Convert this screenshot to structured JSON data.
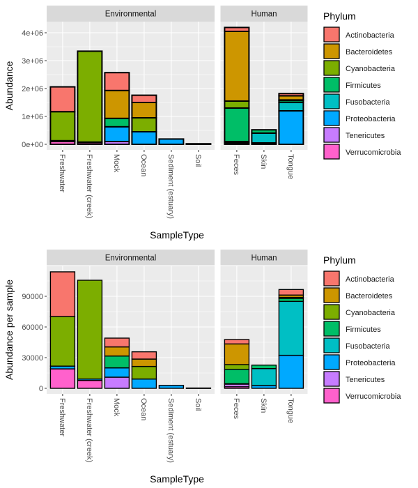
{
  "legend": {
    "title": "Phylum",
    "entries": [
      "Actinobacteria",
      "Bacteroidetes",
      "Cyanobacteria",
      "Firmicutes",
      "Fusobacteria",
      "Proteobacteria",
      "Tenericutes",
      "Verrucomicrobia"
    ],
    "colors": [
      "#F8766D",
      "#CD9600",
      "#7CAE00",
      "#00BE67",
      "#00BFC4",
      "#00A9FF",
      "#C77CFF",
      "#FF61CC"
    ]
  },
  "chart_data": [
    {
      "type": "bar",
      "stacked": true,
      "xlabel": "SampleType",
      "ylabel": "Abundance",
      "ylim": [
        -200000,
        4400000
      ],
      "yticks": [
        0,
        1000000,
        2000000,
        3000000,
        4000000
      ],
      "ytick_labels": [
        "0e+00",
        "1e+06",
        "2e+06",
        "3e+06",
        "4e+06"
      ],
      "grid": true,
      "legend_position": "right",
      "facets": [
        {
          "label": "Environmental",
          "categories": [
            "Freshwater",
            "Freshwater (creek)",
            "Mock",
            "Ocean",
            "Sediment (estuary)",
            "Soil"
          ]
        },
        {
          "label": "Human",
          "categories": [
            "Feces",
            "Skin",
            "Tongue"
          ]
        }
      ],
      "values": {
        "Freshwater": {
          "Verrucomicrobia": 100000,
          "Proteobacteria": 30000,
          "Cyanobacteria": 1040000,
          "Actinobacteria": 890000
        },
        "Freshwater (creek)": {
          "Verrucomicrobia": 60000,
          "Proteobacteria": 20000,
          "Cyanobacteria": 3260000
        },
        "Mock": {
          "Tenericutes": 100000,
          "Proteobacteria": 530000,
          "Firmicutes": 300000,
          "Bacteroidetes": 1000000,
          "Actinobacteria": 640000
        },
        "Ocean": {
          "Proteobacteria": 450000,
          "Cyanobacteria": 500000,
          "Bacteroidetes": 550000,
          "Actinobacteria": 260000
        },
        "Sediment (estuary)": {
          "Proteobacteria": 190000
        },
        "Soil": {
          "Proteobacteria": 20000
        },
        "Feces": {
          "Verrucomicrobia": 50000,
          "Tenericutes": 50000,
          "Firmicutes": 1200000,
          "Cyanobacteria": 250000,
          "Bacteroidetes": 2500000,
          "Actinobacteria": 140000
        },
        "Skin": {
          "Proteobacteria": 50000,
          "Fusobacteria": 350000,
          "Firmicutes": 120000
        },
        "Tongue": {
          "Proteobacteria": 1200000,
          "Fusobacteria": 300000,
          "Firmicutes": 70000,
          "Cyanobacteria": 20000,
          "Bacteroidetes": 150000,
          "Actinobacteria": 80000
        }
      }
    },
    {
      "type": "bar",
      "stacked": true,
      "xlabel": "SampleType",
      "ylabel": "Abundance per sample",
      "ylim": [
        -5455,
        120000
      ],
      "yticks": [
        0,
        30000,
        60000,
        90000
      ],
      "ytick_labels": [
        "0",
        "30000",
        "60000",
        "90000"
      ],
      "grid": true,
      "legend_position": "right",
      "facets": [
        {
          "label": "Environmental",
          "categories": [
            "Freshwater",
            "Freshwater (creek)",
            "Mock",
            "Ocean",
            "Sediment (estuary)",
            "Soil"
          ]
        },
        {
          "label": "Human",
          "categories": [
            "Feces",
            "Skin",
            "Tongue"
          ]
        }
      ],
      "values": {
        "Freshwater": {
          "Verrucomicrobia": 19000,
          "Proteobacteria": 2700,
          "Cyanobacteria": 48500,
          "Actinobacteria": 43700
        },
        "Freshwater (creek)": {
          "Verrucomicrobia": 7700,
          "Proteobacteria": 1400,
          "Cyanobacteria": 96600
        },
        "Mock": {
          "Tenericutes": 10900,
          "Proteobacteria": 9100,
          "Firmicutes": 11600,
          "Bacteroidetes": 8900,
          "Actinobacteria": 8600
        },
        "Ocean": {
          "Proteobacteria": 9100,
          "Cyanobacteria": 12300,
          "Bacteroidetes": 7200,
          "Actinobacteria": 7100
        },
        "Sediment (estuary)": {
          "Proteobacteria": 2900
        },
        "Soil": {
          "Proteobacteria": 300
        },
        "Feces": {
          "Verrucomicrobia": 1500,
          "Tenericutes": 2600,
          "Proteobacteria": 400,
          "Firmicutes": 14100,
          "Cyanobacteria": 4600,
          "Bacteroidetes": 20200,
          "Actinobacteria": 4300
        },
        "Skin": {
          "Proteobacteria": 2700,
          "Fusobacteria": 16600,
          "Firmicutes": 3400
        },
        "Tongue": {
          "Proteobacteria": 32300,
          "Fusobacteria": 52700,
          "Firmicutes": 3000,
          "Cyanobacteria": 900,
          "Bacteroidetes": 2300,
          "Actinobacteria": 5400
        }
      }
    }
  ]
}
